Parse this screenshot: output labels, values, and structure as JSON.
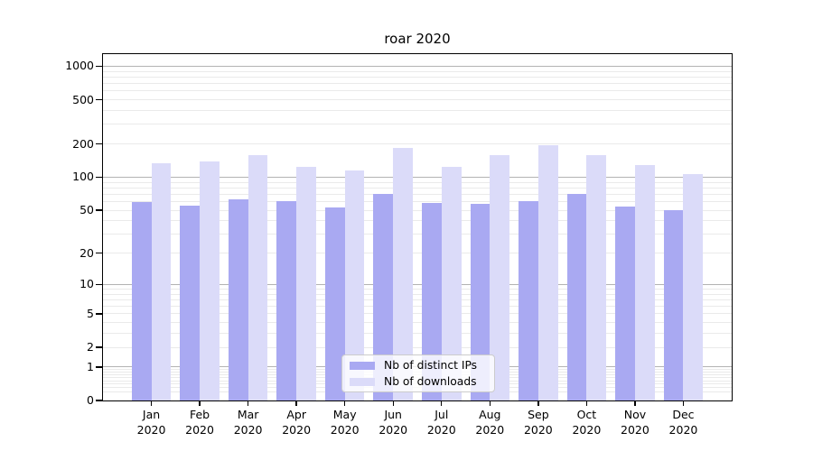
{
  "chart_data": {
    "type": "bar",
    "title": "roar 2020",
    "categories": [
      "Jan 2020",
      "Feb 2020",
      "Mar 2020",
      "Apr 2020",
      "May 2020",
      "Jun 2020",
      "Jul 2020",
      "Aug 2020",
      "Sep 2020",
      "Oct 2020",
      "Nov 2020",
      "Dec 2020"
    ],
    "series": [
      {
        "name": "Nb of distinct IPs",
        "color": "#a9a9f2",
        "values": [
          60,
          55,
          63,
          61,
          53,
          71,
          58,
          57,
          61,
          70,
          54,
          50
        ]
      },
      {
        "name": "Nb of downloads",
        "color": "#dbdbf9",
        "values": [
          135,
          139,
          157,
          124,
          116,
          184,
          124,
          157,
          196,
          157,
          129,
          107
        ]
      }
    ],
    "xlabel": "",
    "ylabel": "",
    "yscale": "log1p",
    "ylim": [
      0,
      1285
    ],
    "yticks": [
      0,
      1,
      2,
      5,
      10,
      20,
      50,
      100,
      200,
      500,
      1000
    ],
    "grid": true,
    "grid_major_values": [
      1,
      10,
      100,
      1000
    ],
    "grid_minor_values": [
      0.2,
      0.3,
      0.4,
      0.5,
      0.6,
      0.7,
      0.8,
      0.9,
      2,
      3,
      4,
      5,
      6,
      7,
      8,
      9,
      20,
      30,
      40,
      50,
      60,
      70,
      80,
      90,
      200,
      300,
      400,
      500,
      600,
      700,
      800,
      900
    ],
    "legend_position": "lower center",
    "colors": {
      "grid_major": "#b3b3b3",
      "grid_minor": "#eaeaea",
      "spine": "#000000",
      "background": "#ffffff"
    }
  }
}
